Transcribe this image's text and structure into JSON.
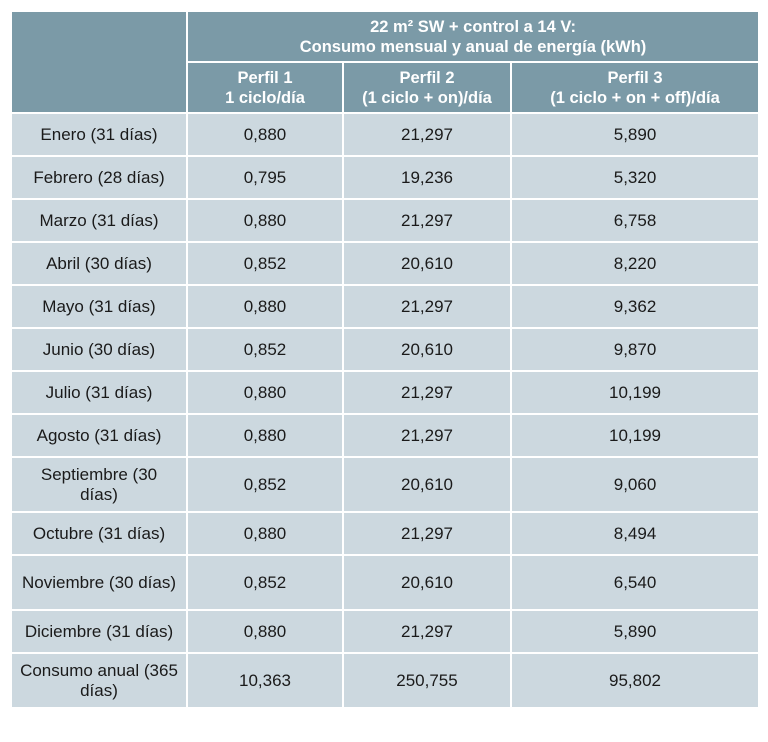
{
  "table": {
    "title_line1": "22 m² SW + control a 14 V:",
    "title_line2": "Consumo mensual y anual de energía (kWh)",
    "profiles": [
      {
        "name": "Perfil 1",
        "desc": "1 ciclo/día"
      },
      {
        "name": "Perfil 2",
        "desc": "(1 ciclo + on)/día"
      },
      {
        "name": "Perfil 3",
        "desc": "(1 ciclo + on + off)/día"
      }
    ],
    "rows": [
      {
        "label": "Enero (31 días)",
        "values": [
          "0,880",
          "21,297",
          "5,890"
        ]
      },
      {
        "label": "Febrero (28 días)",
        "values": [
          "0,795",
          "19,236",
          "5,320"
        ]
      },
      {
        "label": "Marzo (31 días)",
        "values": [
          "0,880",
          "21,297",
          "6,758"
        ]
      },
      {
        "label": "Abril (30 días)",
        "values": [
          "0,852",
          "20,610",
          "8,220"
        ]
      },
      {
        "label": "Mayo (31 días)",
        "values": [
          "0,880",
          "21,297",
          "9,362"
        ]
      },
      {
        "label": "Junio (30 días)",
        "values": [
          "0,852",
          "20,610",
          "9,870"
        ]
      },
      {
        "label": "Julio (31 días)",
        "values": [
          "0,880",
          "21,297",
          "10,199"
        ]
      },
      {
        "label": "Agosto (31 días)",
        "values": [
          "0,880",
          "21,297",
          "10,199"
        ]
      },
      {
        "label": "Septiembre (30 días)",
        "values": [
          "0,852",
          "20,610",
          "9,060"
        ]
      },
      {
        "label": "Octubre (31 días)",
        "values": [
          "0,880",
          "21,297",
          "8,494"
        ]
      },
      {
        "label": "Noviembre (30 días)",
        "values": [
          "0,852",
          "20,610",
          "6,540"
        ]
      },
      {
        "label": "Diciembre (31 días)",
        "values": [
          "0,880",
          "21,297",
          "5,890"
        ]
      },
      {
        "label": "Consumo anual (365 días)",
        "values": [
          "10,363",
          "250,755",
          "95,802"
        ]
      }
    ]
  }
}
